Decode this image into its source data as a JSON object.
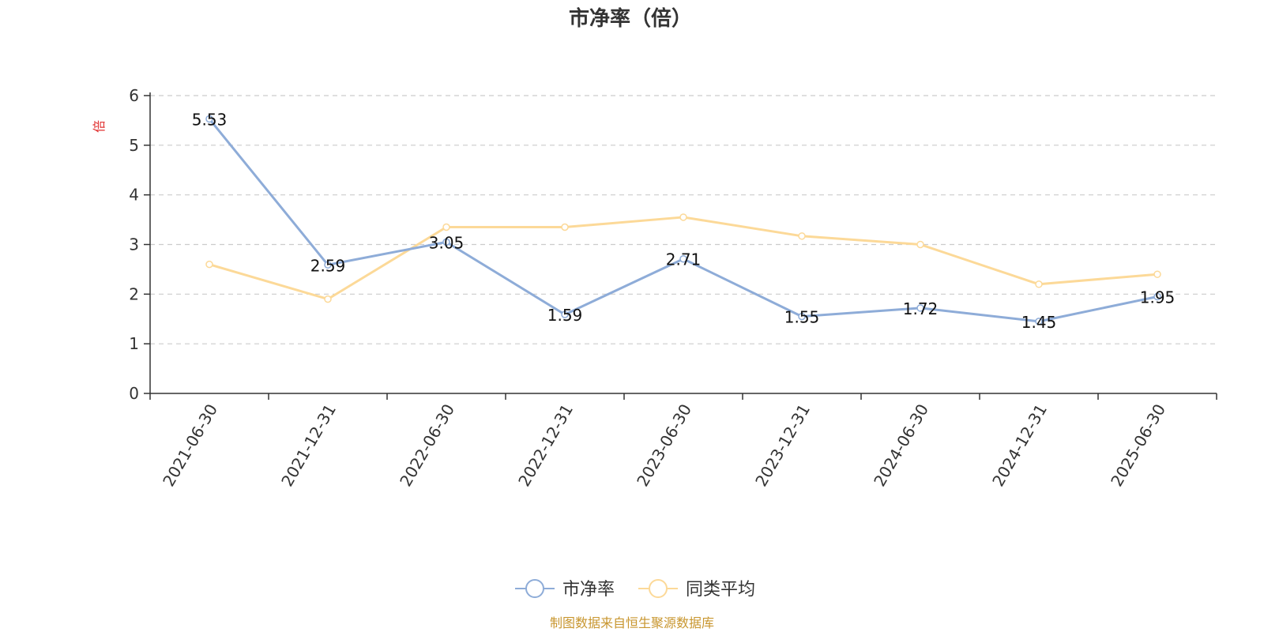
{
  "chart_data": {
    "type": "line",
    "title": "市净率（倍）",
    "unit_label": "倍",
    "categories": [
      "2021-06-30",
      "2021-12-31",
      "2022-06-30",
      "2022-12-31",
      "2023-06-30",
      "2023-12-31",
      "2024-06-30",
      "2024-12-31",
      "2025-06-30"
    ],
    "ylim": [
      0,
      6
    ],
    "yticks": [
      0,
      1,
      2,
      3,
      4,
      5,
      6
    ],
    "grid": true,
    "legend_position": "bottom",
    "series": [
      {
        "name": "市净率",
        "color": "#8eacd8",
        "values": [
          5.53,
          2.59,
          3.05,
          1.59,
          2.71,
          1.55,
          1.72,
          1.45,
          1.95
        ],
        "labels": [
          "5.53",
          "2.59",
          "3.05",
          "1.59",
          "2.71",
          "1.55",
          "1.72",
          "1.45",
          "1.95"
        ],
        "show_labels": true
      },
      {
        "name": "同类平均",
        "color": "#fcd998",
        "values": [
          2.6,
          1.9,
          3.35,
          3.35,
          3.55,
          3.17,
          3.0,
          2.2,
          2.4
        ],
        "show_labels": false
      }
    ],
    "source_note": "制图数据来自恒生聚源数据库"
  }
}
